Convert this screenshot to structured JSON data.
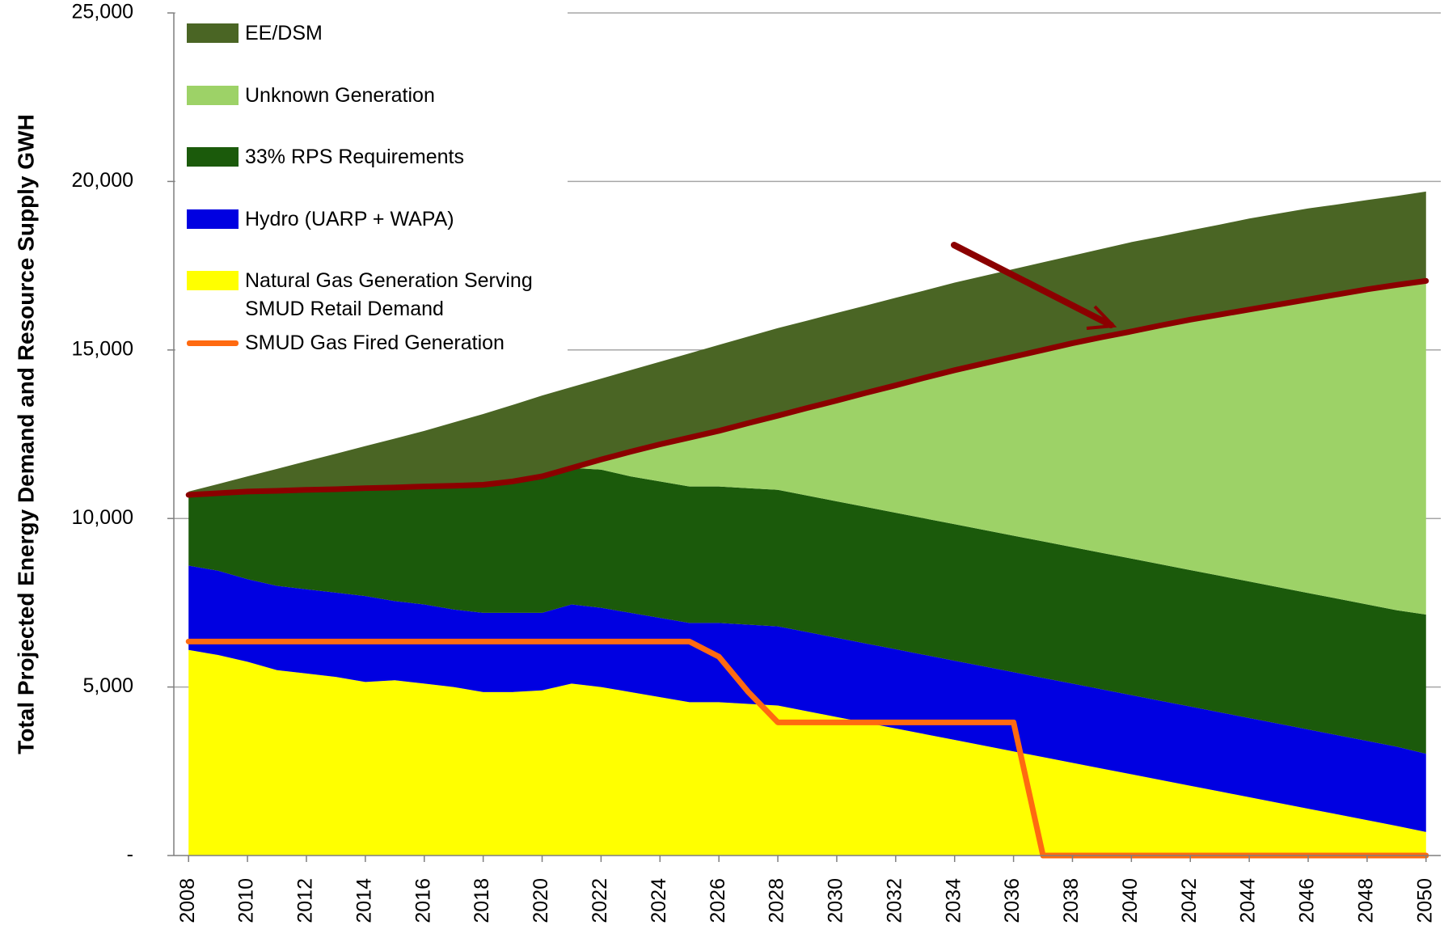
{
  "chart_data": {
    "type": "area",
    "y_label": "Total Projected Energy Demand and Resource Supply GWH",
    "x": [
      2008,
      2009,
      2010,
      2011,
      2012,
      2013,
      2014,
      2015,
      2016,
      2017,
      2018,
      2019,
      2020,
      2021,
      2022,
      2023,
      2024,
      2025,
      2026,
      2027,
      2028,
      2029,
      2030,
      2031,
      2032,
      2033,
      2034,
      2035,
      2036,
      2037,
      2038,
      2039,
      2040,
      2041,
      2042,
      2043,
      2044,
      2045,
      2046,
      2047,
      2048,
      2049,
      2050
    ],
    "xlim": [
      2007.5,
      2050.5
    ],
    "xticks": [
      2008,
      2010,
      2012,
      2014,
      2016,
      2018,
      2020,
      2022,
      2024,
      2026,
      2028,
      2030,
      2032,
      2034,
      2036,
      2038,
      2040,
      2042,
      2044,
      2046,
      2048,
      2050
    ],
    "ylim": [
      0,
      25000
    ],
    "yticks": [
      {
        "value": 0,
        "label": "-"
      },
      {
        "value": 5000,
        "label": "5,000"
      },
      {
        "value": 10000,
        "label": "10,000"
      },
      {
        "value": 15000,
        "label": "15,000"
      },
      {
        "value": 20000,
        "label": "20,000"
      },
      {
        "value": 25000,
        "label": "25,000"
      }
    ],
    "grid": true,
    "stacked": true,
    "legend": "upper left",
    "series": [
      {
        "name": "Natural Gas Generation Serving SMUD Retail Demand",
        "type": "area",
        "color": "#ffff00",
        "values": [
          6100,
          5950,
          5750,
          5500,
          5400,
          5300,
          5150,
          5200,
          5100,
          5000,
          4850,
          4850,
          4900,
          5100,
          5000,
          4850,
          4700,
          4550,
          4550,
          4500,
          4450,
          4280,
          4110,
          3940,
          3770,
          3600,
          3430,
          3260,
          3090,
          2920,
          2750,
          2580,
          2410,
          2240,
          2070,
          1900,
          1730,
          1560,
          1390,
          1220,
          1050,
          880,
          700
        ]
      },
      {
        "name": "Hydro (UARP + WAPA)",
        "type": "area",
        "color": "#0000e1",
        "values": [
          2500,
          2500,
          2450,
          2500,
          2500,
          2500,
          2550,
          2350,
          2350,
          2300,
          2350,
          2350,
          2300,
          2350,
          2350,
          2350,
          2350,
          2350,
          2350,
          2350,
          2350,
          2350,
          2350,
          2350,
          2350,
          2350,
          2350,
          2350,
          2350,
          2350,
          2350,
          2350,
          2350,
          2350,
          2350,
          2350,
          2350,
          2350,
          2350,
          2350,
          2350,
          2350,
          2320
        ]
      },
      {
        "name": "33% RPS Requirements",
        "type": "area",
        "color": "#1b5a0b",
        "values": [
          2100,
          2300,
          2600,
          2820,
          2950,
          3070,
          3200,
          3370,
          3500,
          3670,
          3800,
          3900,
          4050,
          4050,
          4100,
          4050,
          4050,
          4050,
          4050,
          4050,
          4050,
          4050,
          4050,
          4050,
          4050,
          4050,
          4050,
          4050,
          4050,
          4050,
          4050,
          4050,
          4050,
          4050,
          4050,
          4050,
          4050,
          4050,
          4050,
          4050,
          4050,
          4050,
          4130
        ]
      },
      {
        "name": "Unknown Generation",
        "type": "area",
        "color": "#9dd267",
        "values": [
          0,
          0,
          0,
          0,
          0,
          0,
          0,
          0,
          0,
          0,
          0,
          0,
          0,
          0,
          300,
          730,
          1100,
          1450,
          1650,
          1930,
          2200,
          2600,
          2990,
          3390,
          3780,
          4180,
          4570,
          4940,
          5310,
          5680,
          6050,
          6400,
          6740,
          7090,
          7430,
          7750,
          8070,
          8390,
          8710,
          9030,
          9350,
          9650,
          9900
        ]
      },
      {
        "name": "EE/DSM",
        "type": "area",
        "color": "#4a6524",
        "values": [
          100,
          270,
          450,
          650,
          850,
          1050,
          1250,
          1450,
          1650,
          1880,
          2100,
          2270,
          2400,
          2400,
          2400,
          2420,
          2450,
          2500,
          2550,
          2570,
          2600,
          2590,
          2600,
          2590,
          2600,
          2590,
          2600,
          2600,
          2600,
          2600,
          2600,
          2620,
          2650,
          2640,
          2650,
          2670,
          2700,
          2700,
          2700,
          2670,
          2650,
          2640,
          2650
        ]
      },
      {
        "name": "SMUD Gas Fired Generation",
        "type": "line",
        "color": "#ff6a10",
        "values": [
          6350,
          6350,
          6350,
          6350,
          6350,
          6350,
          6350,
          6350,
          6350,
          6350,
          6350,
          6350,
          6350,
          6350,
          6350,
          6350,
          6350,
          6350,
          5900,
          4850,
          3950,
          3950,
          3950,
          3950,
          3950,
          3950,
          3950,
          3950,
          3950,
          0,
          0,
          0,
          0,
          0,
          0,
          0,
          0,
          0,
          0,
          0,
          0,
          0,
          0
        ]
      },
      {
        "type": "line",
        "color": "#8b0000",
        "values": [
          10700,
          10750,
          10800,
          10820,
          10850,
          10870,
          10900,
          10920,
          10950,
          10970,
          11000,
          11100,
          11250,
          11500,
          11750,
          11980,
          12200,
          12400,
          12600,
          12830,
          13050,
          13280,
          13500,
          13730,
          13950,
          14180,
          14400,
          14600,
          14800,
          15000,
          15200,
          15380,
          15550,
          15730,
          15900,
          16050,
          16200,
          16350,
          16500,
          16650,
          16800,
          16930,
          17050
        ]
      }
    ]
  }
}
